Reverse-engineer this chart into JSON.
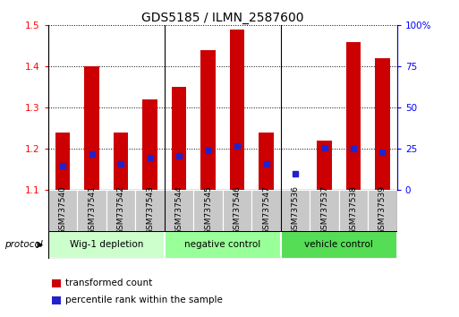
{
  "title": "GDS5185 / ILMN_2587600",
  "samples": [
    "GSM737540",
    "GSM737541",
    "GSM737542",
    "GSM737543",
    "GSM737544",
    "GSM737545",
    "GSM737546",
    "GSM737547",
    "GSM737536",
    "GSM737537",
    "GSM737538",
    "GSM737539"
  ],
  "red_values": [
    1.24,
    1.4,
    1.24,
    1.32,
    1.35,
    1.44,
    1.49,
    1.24,
    1.1,
    1.22,
    1.46,
    1.42
  ],
  "blue_pct": [
    15,
    22,
    16,
    20,
    21,
    24,
    27,
    16,
    10,
    26,
    25,
    23
  ],
  "ylim_left": [
    1.1,
    1.5
  ],
  "yticks_left": [
    1.1,
    1.2,
    1.3,
    1.4,
    1.5
  ],
  "yticks_right": [
    0,
    25,
    50,
    75,
    100
  ],
  "ytick_labels_right": [
    "0",
    "25",
    "50",
    "75",
    "100%"
  ],
  "groups": [
    {
      "label": "Wig-1 depletion",
      "start": 0,
      "end": 4,
      "color": "#ccffcc"
    },
    {
      "label": "negative control",
      "start": 4,
      "end": 8,
      "color": "#99ff99"
    },
    {
      "label": "vehicle control",
      "start": 8,
      "end": 12,
      "color": "#55dd55"
    }
  ],
  "bar_width": 0.5,
  "red_color": "#cc0000",
  "blue_color": "#2222cc",
  "tick_label_bg": "#c8c8c8",
  "group_border": "#888888",
  "legend_red": "transformed count",
  "legend_blue": "percentile rank within the sample",
  "protocol_label": "protocol",
  "title_fontsize": 10,
  "axis_fontsize": 7.5,
  "label_fontsize": 7.5,
  "tick_fontsize": 6.5
}
